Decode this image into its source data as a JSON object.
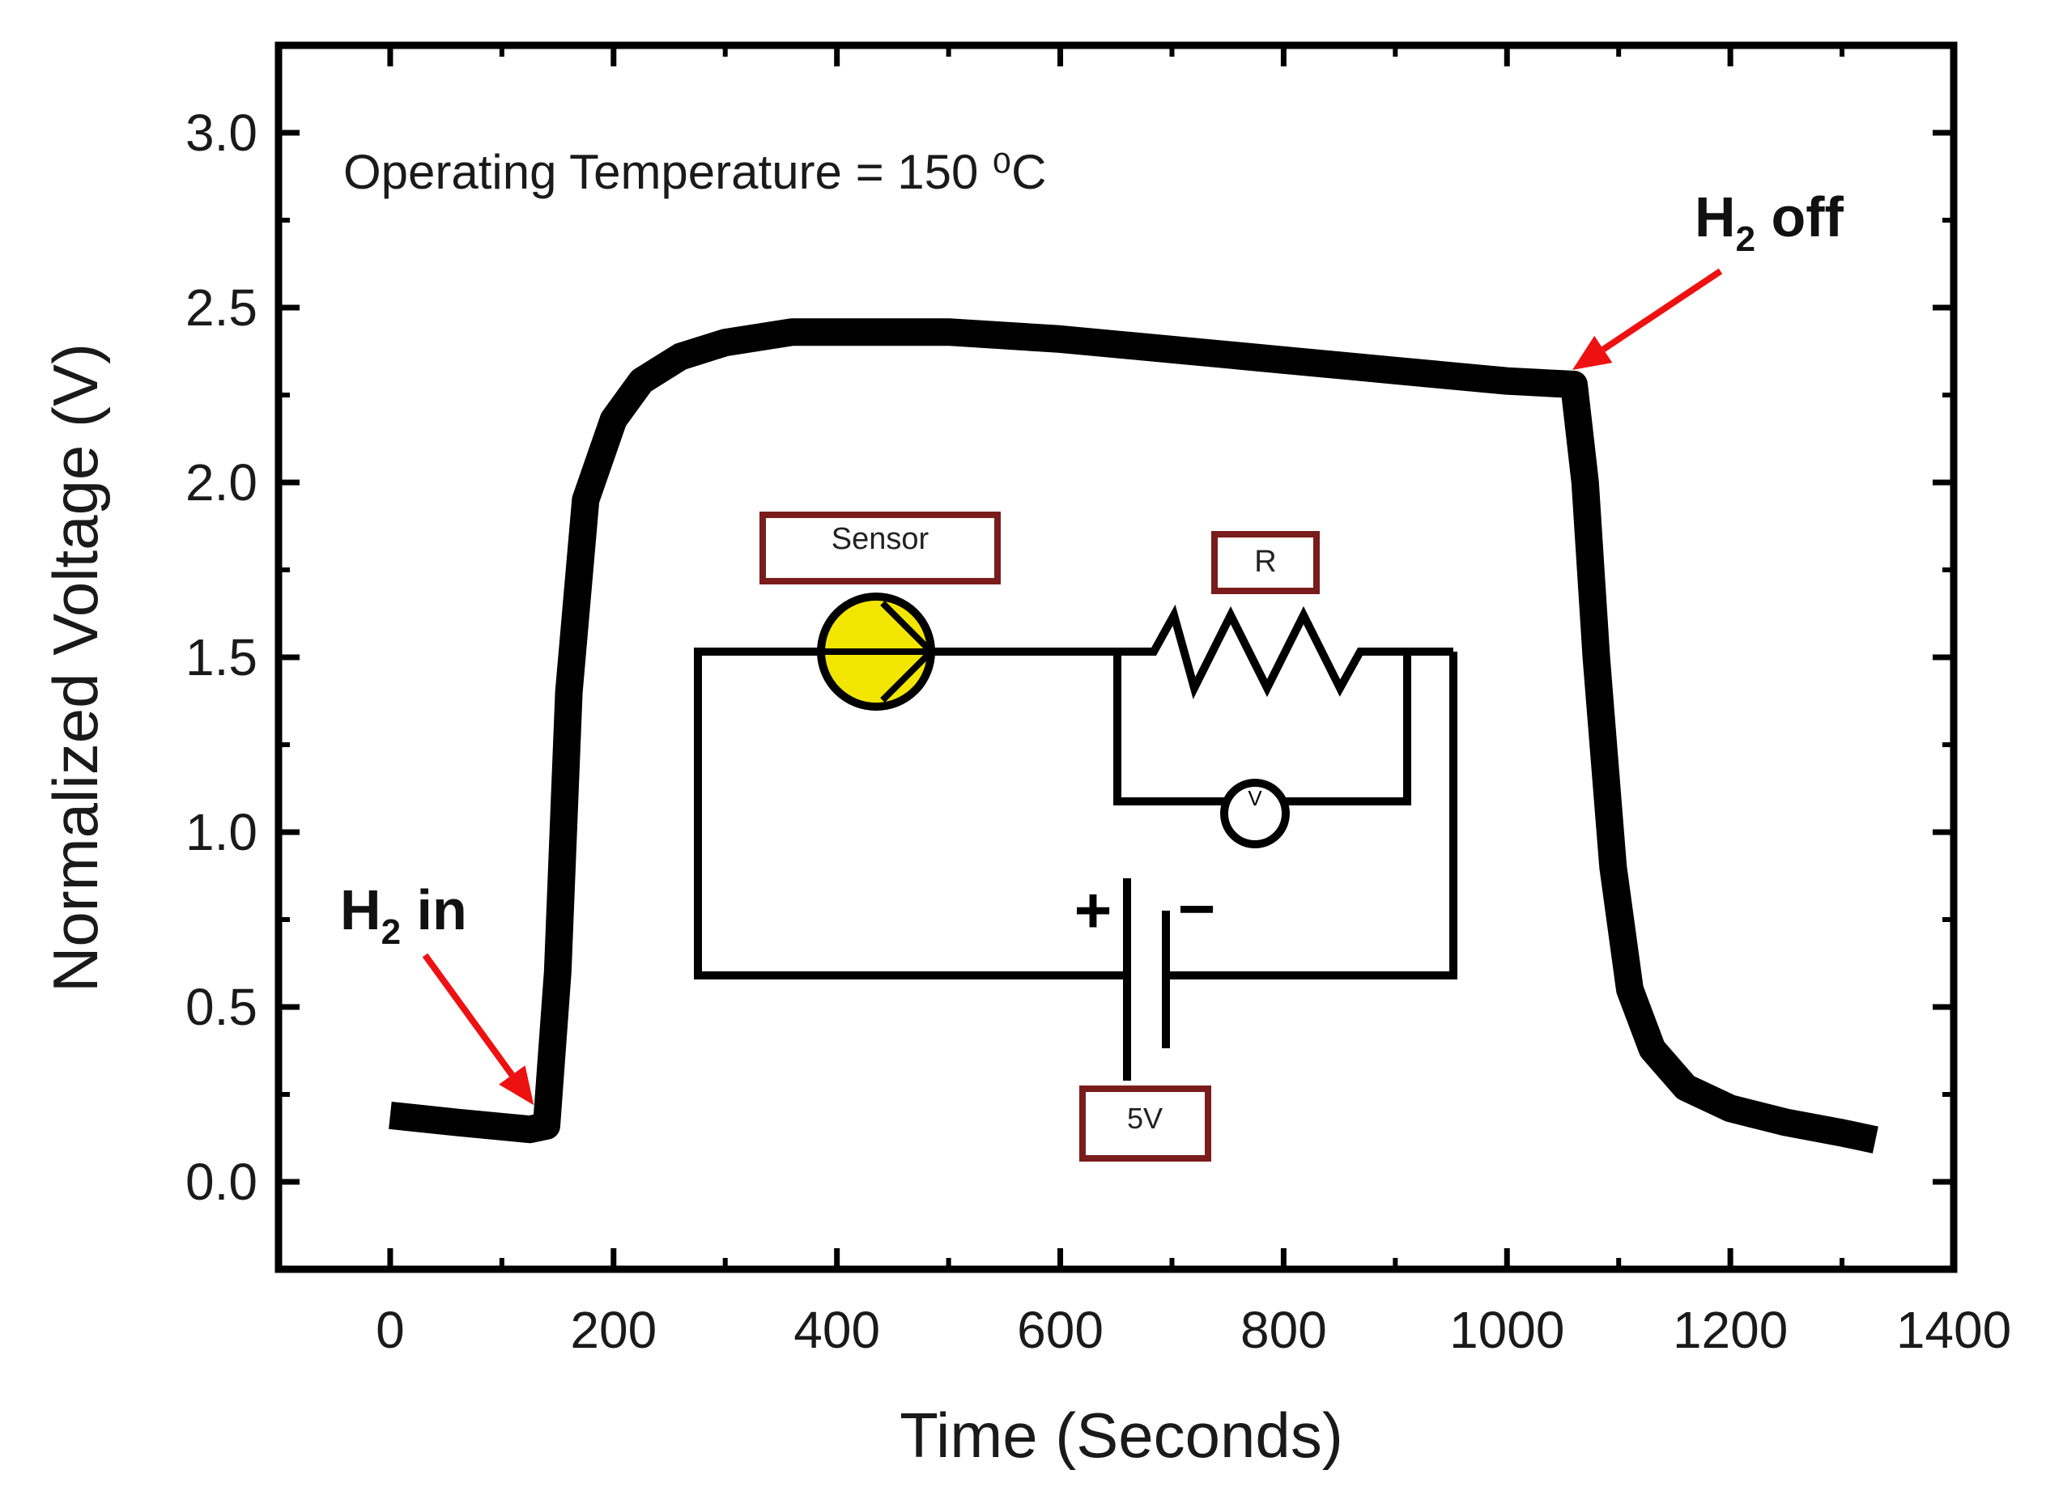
{
  "chart_data": {
    "type": "line",
    "xlabel": "Time (Seconds)",
    "ylabel": "Normalized Voltage (V)",
    "xlim": [
      -100,
      1400
    ],
    "ylim": [
      -0.25,
      3.25
    ],
    "xticks": [
      0,
      200,
      400,
      600,
      800,
      1000,
      1200,
      1400
    ],
    "xtick_labels": [
      "0",
      "200",
      "400",
      "600",
      "800",
      "1000",
      "1200",
      "1400"
    ],
    "yticks": [
      0.0,
      0.5,
      1.0,
      1.5,
      2.0,
      2.5,
      3.0
    ],
    "ytick_labels": [
      "0.0",
      "0.5",
      "1.0",
      "1.5",
      "2.0",
      "2.5",
      "3.0"
    ],
    "grid": false,
    "series": [
      {
        "color": "#000000",
        "x": [
          0,
          60,
          125,
          140,
          150,
          160,
          175,
          200,
          225,
          260,
          300,
          360,
          420,
          500,
          600,
          700,
          800,
          900,
          1000,
          1060,
          1070,
          1080,
          1095,
          1110,
          1130,
          1160,
          1200,
          1250,
          1300,
          1330
        ],
        "y": [
          0.19,
          0.17,
          0.15,
          0.16,
          0.6,
          1.4,
          1.95,
          2.18,
          2.29,
          2.36,
          2.4,
          2.43,
          2.43,
          2.43,
          2.41,
          2.38,
          2.35,
          2.32,
          2.29,
          2.28,
          2.0,
          1.5,
          0.9,
          0.55,
          0.38,
          0.27,
          0.21,
          0.17,
          0.14,
          0.12
        ]
      }
    ],
    "annotations": {
      "operating_temperature": "Operating Temperature = 150 ⁰C",
      "h2_in": {
        "main": "H",
        "sub": "2",
        "rest": " in",
        "x": 125,
        "y": 0.15
      },
      "h2_off": {
        "main": "H",
        "sub": "2",
        "rest": " off",
        "x": 1060,
        "y": 2.28
      },
      "arrow_color": "#ee1111"
    }
  },
  "circuit": {
    "sensor_label": "Sensor",
    "resistor_label": "R",
    "voltmeter_label": "V",
    "battery_label": "5V",
    "plus_sign": "+",
    "minus_sign": "−",
    "box_color": "#7a1c1c",
    "sensor_fill": "#f2e600"
  }
}
